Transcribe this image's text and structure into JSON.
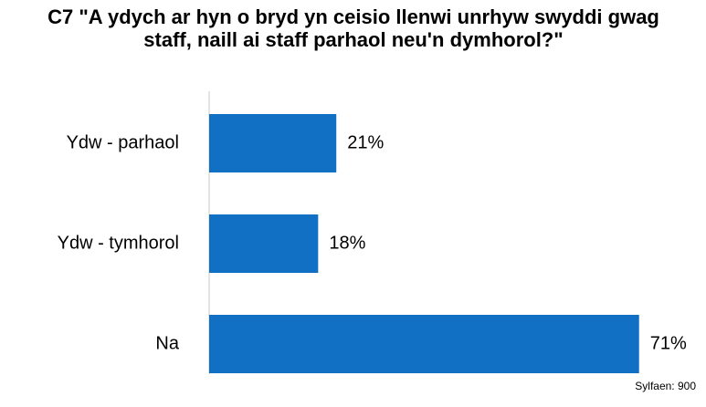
{
  "chart_data": {
    "type": "bar",
    "orientation": "horizontal",
    "title": "C7 \"A ydych ar hyn o bryd yn ceisio llenwi unrhyw swyddi gwag staff, naill ai staff parhaol neu'n dymhorol?\"",
    "categories": [
      "Ydw - parhaol",
      "Ydw - tymhorol",
      "Na"
    ],
    "values": [
      21,
      18,
      71
    ],
    "value_labels": [
      "21%",
      "18%",
      "71%"
    ],
    "color": "#1170c4",
    "note": "Sylfaen: 900"
  }
}
